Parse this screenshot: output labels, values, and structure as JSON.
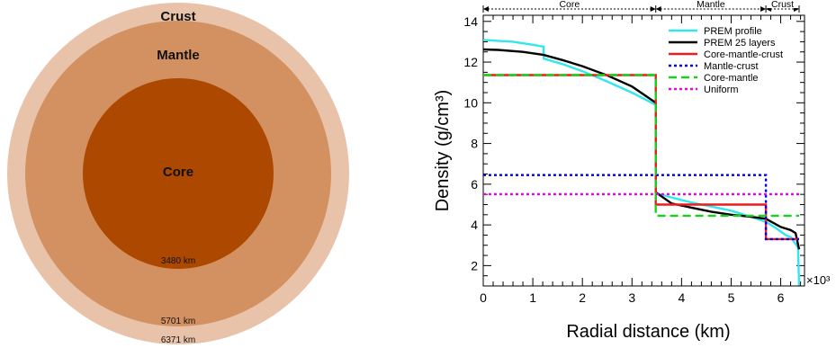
{
  "earth_diagram": {
    "layers": [
      {
        "name": "Crust",
        "color": "#e8c3aa"
      },
      {
        "name": "Mantle",
        "color": "#d39162"
      },
      {
        "name": "Core",
        "color": "#ad4800"
      }
    ],
    "radii_labels": [
      "3480 km",
      "5701 km",
      "6371 km"
    ]
  },
  "chart_data": {
    "type": "line",
    "title": "",
    "xlabel": "Radial distance (km)",
    "ylabel": "Density (g/cm³)",
    "x_multiplier": "×10³",
    "xlim": [
      0,
      6.48
    ],
    "ylim": [
      1,
      14.3
    ],
    "x_ticks": [
      "0",
      "1",
      "2",
      "3",
      "4",
      "5",
      "6"
    ],
    "y_ticks": [
      "2",
      "4",
      "6",
      "8",
      "10",
      "12",
      "14"
    ],
    "regions": [
      {
        "label": "Core",
        "from": 0,
        "to": 3.48
      },
      {
        "label": "Mantle",
        "from": 3.48,
        "to": 5.701
      },
      {
        "label": "Crust",
        "from": 5.701,
        "to": 6.371
      }
    ],
    "legend_position": "top-right",
    "series": [
      {
        "name": "PREM profile",
        "color": "#33e6ee",
        "dash": "solid",
        "points": [
          [
            0,
            13.09
          ],
          [
            0.6,
            13.0
          ],
          [
            1.0,
            12.85
          ],
          [
            1.22,
            12.76
          ],
          [
            1.22,
            12.17
          ],
          [
            1.6,
            11.9
          ],
          [
            2.0,
            11.55
          ],
          [
            2.5,
            11.05
          ],
          [
            3.0,
            10.5
          ],
          [
            3.48,
            9.9
          ],
          [
            3.48,
            5.57
          ],
          [
            3.8,
            5.35
          ],
          [
            4.2,
            5.1
          ],
          [
            4.6,
            4.9
          ],
          [
            5.0,
            4.7
          ],
          [
            5.4,
            4.4
          ],
          [
            5.701,
            4.15
          ],
          [
            5.9,
            3.85
          ],
          [
            6.1,
            3.5
          ],
          [
            6.2,
            3.4
          ],
          [
            6.35,
            2.9
          ],
          [
            6.371,
            1.02
          ]
        ]
      },
      {
        "name": "PREM 25 layers",
        "color": "#000000",
        "dash": "solid",
        "points": [
          [
            0,
            12.62
          ],
          [
            0.3,
            12.6
          ],
          [
            0.8,
            12.5
          ],
          [
            1.22,
            12.35
          ],
          [
            1.6,
            12.1
          ],
          [
            2.0,
            11.8
          ],
          [
            2.5,
            11.35
          ],
          [
            3.0,
            10.8
          ],
          [
            3.48,
            10.0
          ],
          [
            3.48,
            5.6
          ],
          [
            3.8,
            5.05
          ],
          [
            4.2,
            4.85
          ],
          [
            4.6,
            4.65
          ],
          [
            5.0,
            4.5
          ],
          [
            5.4,
            4.4
          ],
          [
            5.701,
            4.3
          ],
          [
            6.0,
            3.9
          ],
          [
            6.2,
            3.75
          ],
          [
            6.3,
            3.6
          ],
          [
            6.371,
            2.8
          ]
        ]
      },
      {
        "name": "Core-mantle-crust",
        "color": "#ee1c1c",
        "dash": "solid",
        "points": [
          [
            0,
            11.36
          ],
          [
            3.48,
            11.36
          ],
          [
            3.48,
            5.0
          ],
          [
            5.701,
            5.0
          ],
          [
            5.701,
            3.3
          ],
          [
            6.371,
            3.3
          ]
        ]
      },
      {
        "name": "Mantle-crust",
        "color": "#0000dd",
        "dash": "dotted",
        "points": [
          [
            0,
            6.45
          ],
          [
            5.701,
            6.45
          ],
          [
            5.701,
            3.3
          ],
          [
            6.371,
            3.3
          ]
        ]
      },
      {
        "name": "Core-mantle",
        "color": "#19d119",
        "dash": "dashed",
        "points": [
          [
            0,
            11.36
          ],
          [
            3.48,
            11.36
          ],
          [
            3.48,
            4.45
          ],
          [
            6.371,
            4.45
          ]
        ]
      },
      {
        "name": "Uniform",
        "color": "#ee00ee",
        "dash": "dotted",
        "points": [
          [
            0,
            5.51
          ],
          [
            6.371,
            5.51
          ]
        ]
      }
    ]
  }
}
